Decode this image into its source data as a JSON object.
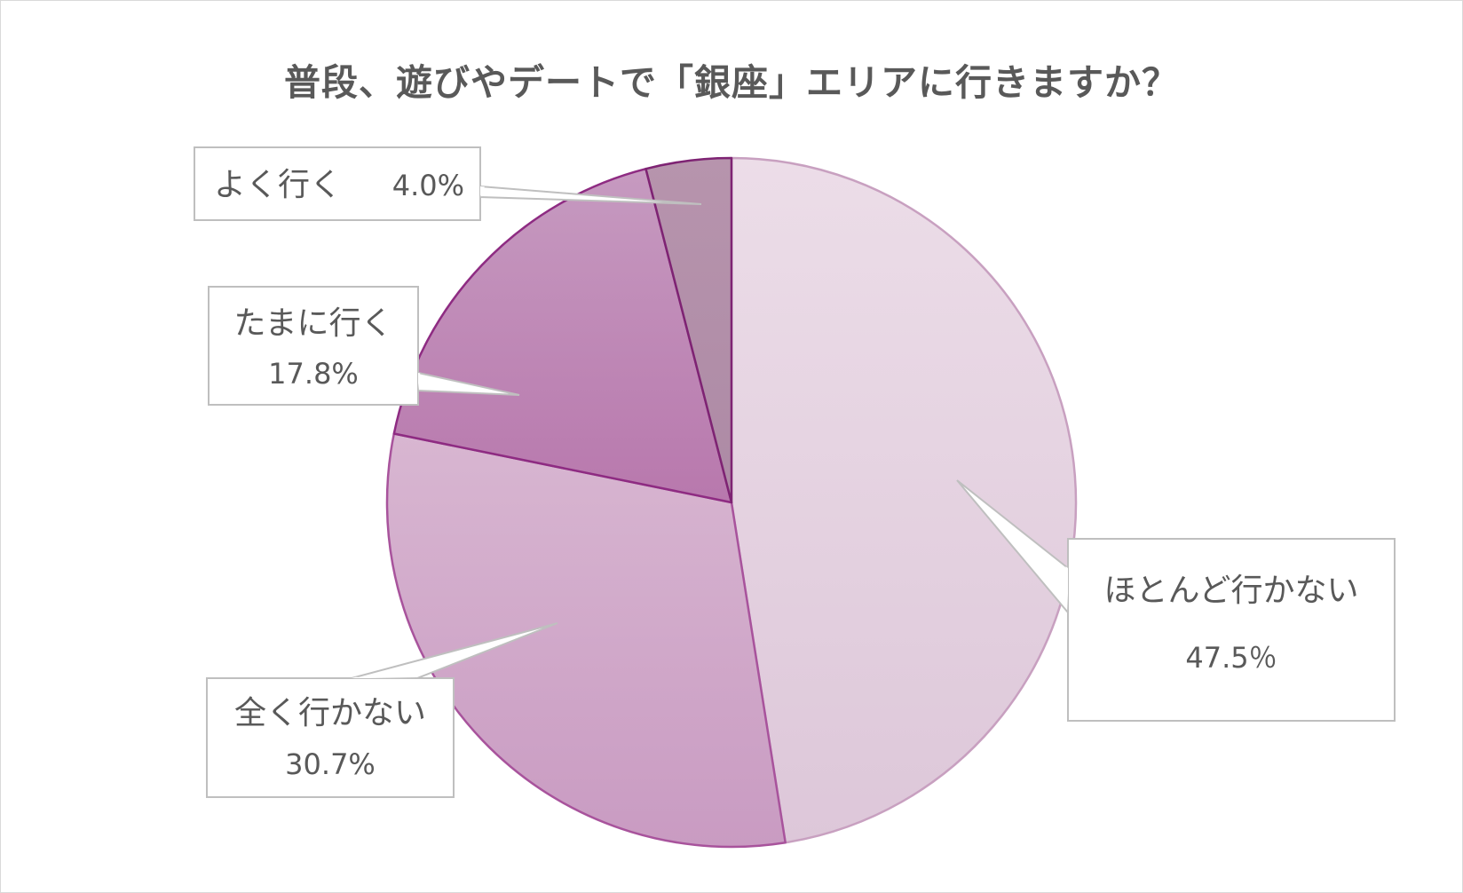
{
  "chart_data": {
    "type": "pie",
    "title": "普段、遊びやデートで「銀座」エリアに行きますか？",
    "slices": [
      {
        "label": "ほとんど行かない",
        "value": 47.5,
        "value_text": "47.5％",
        "color": "#e3d0df"
      },
      {
        "label": "全く行かない",
        "value": 30.7,
        "value_text": "30.7%",
        "color": "#d0a8c9"
      },
      {
        "label": "たまに行く",
        "value": 17.8,
        "value_text": "17.8%",
        "color": "#bd84b3"
      },
      {
        "label": "よく行く",
        "value": 4.0,
        "value_text": "4.0%",
        "color": "#b38ea9"
      }
    ],
    "start_angle": "12 o'clock",
    "direction": "clockwise",
    "legend": "none"
  }
}
